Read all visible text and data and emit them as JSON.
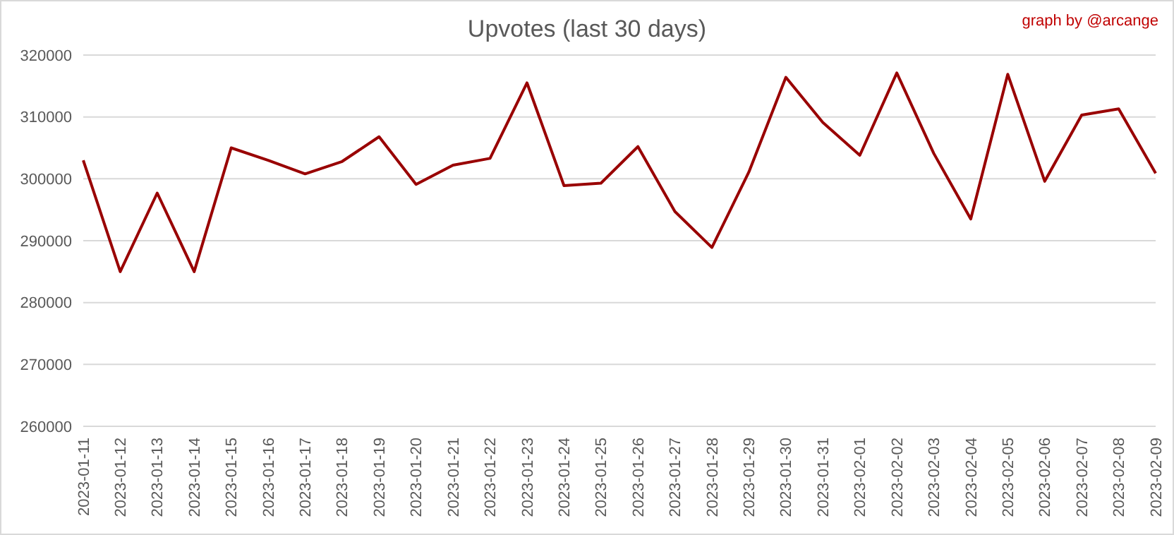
{
  "chart_data": {
    "type": "line",
    "title": "Upvotes (last 30 days)",
    "annotations": [
      "graph by @arcange"
    ],
    "categories": [
      "2023-01-11",
      "2023-01-12",
      "2023-01-13",
      "2023-01-14",
      "2023-01-15",
      "2023-01-16",
      "2023-01-17",
      "2023-01-18",
      "2023-01-19",
      "2023-01-20",
      "2023-01-21",
      "2023-01-22",
      "2023-01-23",
      "2023-01-24",
      "2023-01-25",
      "2023-01-26",
      "2023-01-27",
      "2023-01-28",
      "2023-01-29",
      "2023-01-30",
      "2023-01-31",
      "2023-02-01",
      "2023-02-02",
      "2023-02-03",
      "2023-02-04",
      "2023-02-05",
      "2023-02-06",
      "2023-02-07",
      "2023-02-08",
      "2023-02-09"
    ],
    "series": [
      {
        "color": "#990000",
        "values": [
          303000,
          285000,
          297700,
          285000,
          305000,
          303000,
          300800,
          302800,
          306800,
          299100,
          302200,
          303300,
          315500,
          298900,
          299300,
          305200,
          294700,
          288900,
          301100,
          316400,
          309100,
          303800,
          317100,
          304100,
          293500,
          316900,
          299600,
          310300,
          311300,
          300900
        ]
      }
    ],
    "ylim": [
      260000,
      320000
    ],
    "yticks": [
      260000,
      270000,
      280000,
      290000,
      300000,
      310000,
      320000
    ],
    "grid": "y",
    "legend": false,
    "marker": "none",
    "line_style": "solid"
  }
}
